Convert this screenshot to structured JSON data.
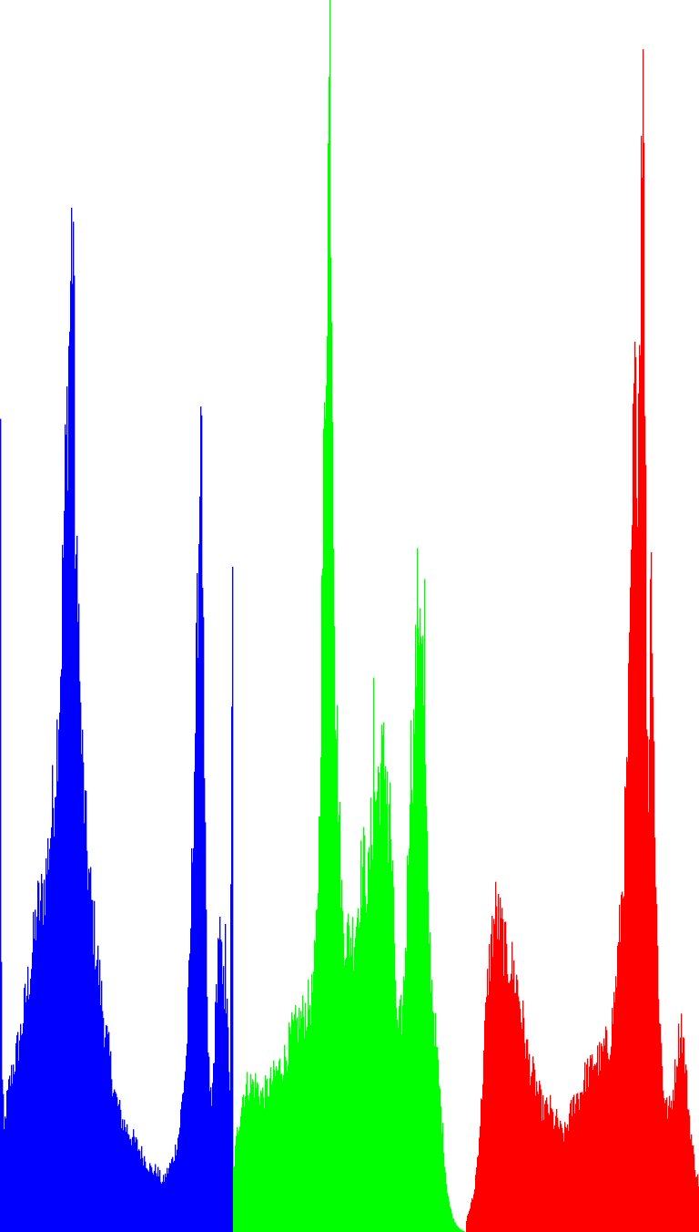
{
  "chart_data": {
    "type": "bar",
    "title": "",
    "xlabel": "",
    "ylabel": "",
    "grid": false,
    "legend": "none",
    "bins_per_channel": 256,
    "ylim": [
      0,
      1.0
    ],
    "series": [
      {
        "color": "#0000ff",
        "anchors": [
          [
            0,
            0.66
          ],
          [
            1,
            0.23
          ],
          [
            2,
            0.12
          ],
          [
            4,
            0.08
          ],
          [
            6,
            0.1
          ],
          [
            10,
            0.12
          ],
          [
            16,
            0.14
          ],
          [
            22,
            0.16
          ],
          [
            28,
            0.19
          ],
          [
            34,
            0.22
          ],
          [
            40,
            0.26
          ],
          [
            46,
            0.27
          ],
          [
            50,
            0.29
          ],
          [
            54,
            0.32
          ],
          [
            58,
            0.35
          ],
          [
            62,
            0.4
          ],
          [
            66,
            0.46
          ],
          [
            70,
            0.58
          ],
          [
            74,
            0.68
          ],
          [
            78,
            0.8
          ],
          [
            80,
            0.82
          ],
          [
            82,
            0.58
          ],
          [
            86,
            0.45
          ],
          [
            90,
            0.38
          ],
          [
            94,
            0.32
          ],
          [
            98,
            0.28
          ],
          [
            102,
            0.25
          ],
          [
            108,
            0.21
          ],
          [
            114,
            0.17
          ],
          [
            120,
            0.14
          ],
          [
            126,
            0.11
          ],
          [
            134,
            0.09
          ],
          [
            142,
            0.08
          ],
          [
            150,
            0.07
          ],
          [
            158,
            0.06
          ],
          [
            166,
            0.05
          ],
          [
            172,
            0.05
          ],
          [
            178,
            0.04
          ],
          [
            184,
            0.05
          ],
          [
            190,
            0.06
          ],
          [
            196,
            0.08
          ],
          [
            200,
            0.11
          ],
          [
            204,
            0.14
          ],
          [
            208,
            0.22
          ],
          [
            212,
            0.35
          ],
          [
            216,
            0.48
          ],
          [
            220,
            0.66
          ],
          [
            222,
            0.55
          ],
          [
            224,
            0.35
          ],
          [
            228,
            0.14
          ],
          [
            232,
            0.1
          ],
          [
            236,
            0.17
          ],
          [
            240,
            0.25
          ],
          [
            244,
            0.2
          ],
          [
            248,
            0.19
          ],
          [
            252,
            0.12
          ],
          [
            255,
            0.54
          ]
        ],
        "spikes": [
          [
            0,
            0.66
          ],
          [
            80,
            0.82
          ],
          [
            86,
            0.51
          ],
          [
            220,
            0.67
          ],
          [
            247,
            0.25
          ],
          [
            255,
            0.54
          ]
        ]
      },
      {
        "color": "#00ff00",
        "anchors": [
          [
            0,
            0.05
          ],
          [
            4,
            0.08
          ],
          [
            10,
            0.11
          ],
          [
            16,
            0.12
          ],
          [
            24,
            0.12
          ],
          [
            32,
            0.11
          ],
          [
            40,
            0.12
          ],
          [
            48,
            0.13
          ],
          [
            56,
            0.14
          ],
          [
            64,
            0.16
          ],
          [
            72,
            0.17
          ],
          [
            80,
            0.18
          ],
          [
            86,
            0.19
          ],
          [
            90,
            0.22
          ],
          [
            94,
            0.32
          ],
          [
            98,
            0.55
          ],
          [
            102,
            0.75
          ],
          [
            106,
            0.98
          ],
          [
            108,
            0.78
          ],
          [
            112,
            0.45
          ],
          [
            116,
            0.34
          ],
          [
            120,
            0.25
          ],
          [
            124,
            0.24
          ],
          [
            128,
            0.24
          ],
          [
            132,
            0.24
          ],
          [
            136,
            0.26
          ],
          [
            140,
            0.29
          ],
          [
            144,
            0.3
          ],
          [
            148,
            0.28
          ],
          [
            152,
            0.33
          ],
          [
            156,
            0.35
          ],
          [
            160,
            0.37
          ],
          [
            164,
            0.38
          ],
          [
            168,
            0.38
          ],
          [
            172,
            0.34
          ],
          [
            176,
            0.26
          ],
          [
            180,
            0.16
          ],
          [
            186,
            0.18
          ],
          [
            190,
            0.25
          ],
          [
            194,
            0.38
          ],
          [
            198,
            0.4
          ],
          [
            202,
            0.5
          ],
          [
            206,
            0.52
          ],
          [
            210,
            0.4
          ],
          [
            214,
            0.26
          ],
          [
            218,
            0.2
          ],
          [
            222,
            0.16
          ],
          [
            226,
            0.12
          ],
          [
            230,
            0.08
          ],
          [
            234,
            0.04
          ],
          [
            238,
            0.02
          ],
          [
            242,
            0.01
          ],
          [
            246,
            0.005
          ],
          [
            250,
            0.002
          ],
          [
            255,
            0.0
          ]
        ],
        "spikes": [
          [
            106,
            1.0
          ],
          [
            154,
            0.45
          ],
          [
            210,
            0.53
          ],
          [
            170,
            0.3
          ],
          [
            176,
            0.28
          ]
        ]
      },
      {
        "color": "#ff0000",
        "anchors": [
          [
            0,
            0.01
          ],
          [
            4,
            0.02
          ],
          [
            8,
            0.03
          ],
          [
            12,
            0.06
          ],
          [
            16,
            0.1
          ],
          [
            20,
            0.16
          ],
          [
            24,
            0.21
          ],
          [
            28,
            0.24
          ],
          [
            32,
            0.26
          ],
          [
            36,
            0.25
          ],
          [
            40,
            0.24
          ],
          [
            44,
            0.22
          ],
          [
            48,
            0.22
          ],
          [
            52,
            0.21
          ],
          [
            56,
            0.2
          ],
          [
            60,
            0.18
          ],
          [
            64,
            0.16
          ],
          [
            68,
            0.14
          ],
          [
            72,
            0.13
          ],
          [
            76,
            0.12
          ],
          [
            80,
            0.11
          ],
          [
            84,
            0.1
          ],
          [
            88,
            0.1
          ],
          [
            92,
            0.1
          ],
          [
            96,
            0.09
          ],
          [
            100,
            0.09
          ],
          [
            104,
            0.08
          ],
          [
            108,
            0.08
          ],
          [
            112,
            0.09
          ],
          [
            116,
            0.1
          ],
          [
            120,
            0.11
          ],
          [
            124,
            0.11
          ],
          [
            128,
            0.12
          ],
          [
            132,
            0.13
          ],
          [
            136,
            0.13
          ],
          [
            140,
            0.14
          ],
          [
            144,
            0.14
          ],
          [
            148,
            0.14
          ],
          [
            152,
            0.15
          ],
          [
            156,
            0.15
          ],
          [
            160,
            0.17
          ],
          [
            164,
            0.2
          ],
          [
            168,
            0.24
          ],
          [
            172,
            0.29
          ],
          [
            176,
            0.36
          ],
          [
            180,
            0.48
          ],
          [
            184,
            0.66
          ],
          [
            186,
            0.7
          ],
          [
            188,
            0.65
          ],
          [
            190,
            0.72
          ],
          [
            192,
            0.88
          ],
          [
            194,
            0.95
          ],
          [
            196,
            0.7
          ],
          [
            198,
            0.45
          ],
          [
            200,
            0.35
          ],
          [
            202,
            0.52
          ],
          [
            204,
            0.53
          ],
          [
            206,
            0.4
          ],
          [
            208,
            0.28
          ],
          [
            212,
            0.18
          ],
          [
            216,
            0.12
          ],
          [
            220,
            0.1
          ],
          [
            224,
            0.1
          ],
          [
            228,
            0.12
          ],
          [
            232,
            0.15
          ],
          [
            236,
            0.17
          ],
          [
            240,
            0.14
          ],
          [
            244,
            0.1
          ],
          [
            248,
            0.07
          ],
          [
            252,
            0.05
          ],
          [
            255,
            0.04
          ]
        ],
        "spikes": [
          [
            194,
            0.96
          ],
          [
            186,
            0.71
          ],
          [
            190,
            0.72
          ],
          [
            202,
            0.53
          ]
        ]
      }
    ]
  }
}
